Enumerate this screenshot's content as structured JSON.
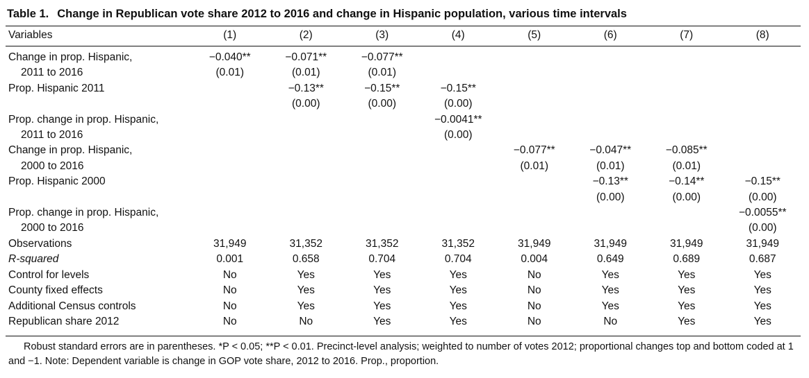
{
  "title": {
    "number": "Table 1.",
    "text": "Change in Republican vote share 2012 to 2016 and change in Hispanic population, various time intervals"
  },
  "header": {
    "variables_label": "Variables",
    "columns": [
      "(1)",
      "(2)",
      "(3)",
      "(4)",
      "(5)",
      "(6)",
      "(7)",
      "(8)"
    ]
  },
  "rows": [
    {
      "label": "Change in prop. Hispanic,",
      "cells": [
        "−0.040**",
        "−0.071**",
        "−0.077**",
        "",
        "",
        "",
        "",
        ""
      ]
    },
    {
      "label": "2011 to 2016",
      "cont": true,
      "cells": [
        "(0.01)",
        "(0.01)",
        "(0.01)",
        "",
        "",
        "",
        "",
        ""
      ]
    },
    {
      "label": "Prop. Hispanic 2011",
      "cells": [
        "",
        "−0.13**",
        "−0.15**",
        "−0.15**",
        "",
        "",
        "",
        ""
      ]
    },
    {
      "label": "",
      "cells": [
        "",
        "(0.00)",
        "(0.00)",
        "(0.00)",
        "",
        "",
        "",
        ""
      ]
    },
    {
      "label": "Prop. change in prop. Hispanic,",
      "cells": [
        "",
        "",
        "",
        "−0.0041**",
        "",
        "",
        "",
        ""
      ]
    },
    {
      "label": "2011 to 2016",
      "cont": true,
      "cells": [
        "",
        "",
        "",
        "(0.00)",
        "",
        "",
        "",
        ""
      ]
    },
    {
      "label": "Change in prop. Hispanic,",
      "cells": [
        "",
        "",
        "",
        "",
        "−0.077**",
        "−0.047**",
        "−0.085**",
        ""
      ]
    },
    {
      "label": "2000 to 2016",
      "cont": true,
      "cells": [
        "",
        "",
        "",
        "",
        "(0.01)",
        "(0.01)",
        "(0.01)",
        ""
      ]
    },
    {
      "label": "Prop. Hispanic 2000",
      "cells": [
        "",
        "",
        "",
        "",
        "",
        "−0.13**",
        "−0.14**",
        "−0.15**"
      ]
    },
    {
      "label": "",
      "cells": [
        "",
        "",
        "",
        "",
        "",
        "(0.00)",
        "(0.00)",
        "(0.00)"
      ]
    },
    {
      "label": "Prop. change in prop. Hispanic,",
      "cells": [
        "",
        "",
        "",
        "",
        "",
        "",
        "",
        "−0.0055**"
      ]
    },
    {
      "label": "2000 to 2016",
      "cont": true,
      "cells": [
        "",
        "",
        "",
        "",
        "",
        "",
        "",
        "(0.00)"
      ]
    },
    {
      "label": "Observations",
      "cells": [
        "31,949",
        "31,352",
        "31,352",
        "31,352",
        "31,949",
        "31,949",
        "31,949",
        "31,949"
      ]
    },
    {
      "label": "R-squared",
      "italic": true,
      "cells": [
        "0.001",
        "0.658",
        "0.704",
        "0.704",
        "0.004",
        "0.649",
        "0.689",
        "0.687"
      ]
    },
    {
      "label": "Control for levels",
      "cells": [
        "No",
        "Yes",
        "Yes",
        "Yes",
        "No",
        "Yes",
        "Yes",
        "Yes"
      ]
    },
    {
      "label": "County fixed effects",
      "cells": [
        "No",
        "Yes",
        "Yes",
        "Yes",
        "No",
        "Yes",
        "Yes",
        "Yes"
      ]
    },
    {
      "label": "Additional Census controls",
      "cells": [
        "No",
        "Yes",
        "Yes",
        "Yes",
        "No",
        "Yes",
        "Yes",
        "Yes"
      ]
    },
    {
      "label": "Republican share 2012",
      "cells": [
        "No",
        "No",
        "Yes",
        "Yes",
        "No",
        "No",
        "Yes",
        "Yes"
      ]
    }
  ],
  "notes": "Robust standard errors are in parentheses. *P < 0.05; **P < 0.01. Precinct-level analysis; weighted to number of votes 2012; proportional changes top and bottom coded at 1 and −1. Note: Dependent variable is change in GOP vote share, 2012 to 2016. Prop., proportion."
}
